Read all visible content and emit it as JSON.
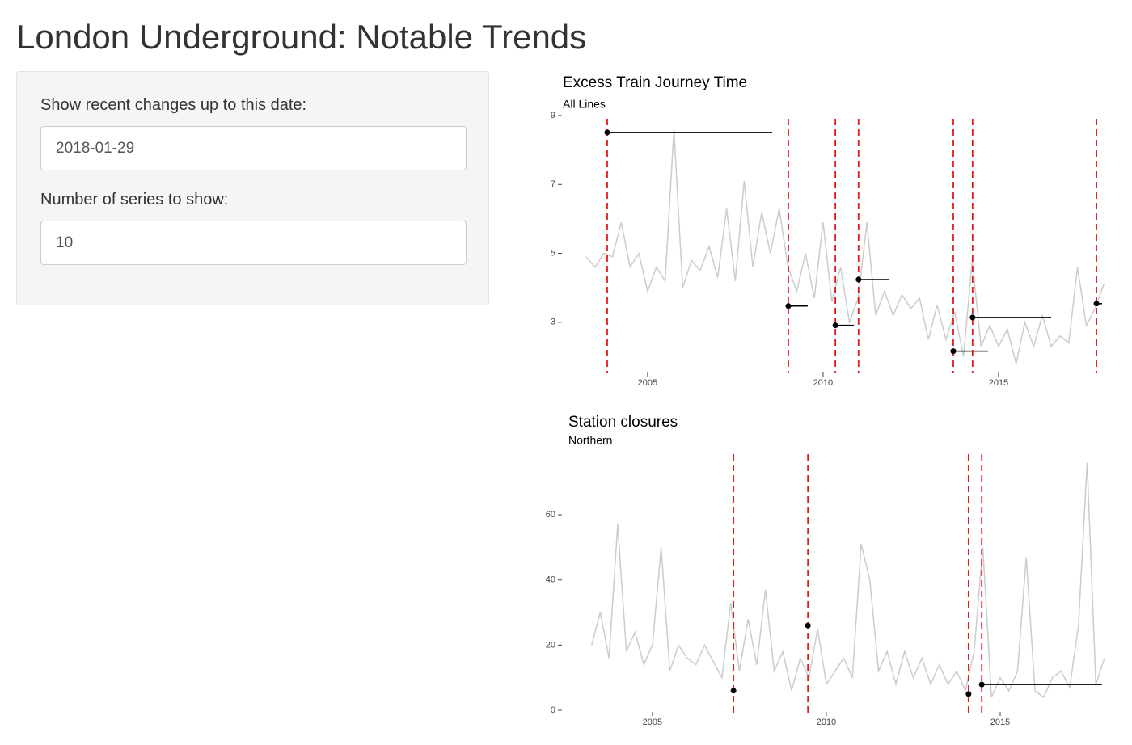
{
  "header": {
    "title": "London Underground: Notable Trends"
  },
  "sidebar": {
    "inputs": [
      {
        "label": "Show recent changes up to this date:",
        "value": "2018-01-29"
      },
      {
        "label": "Number of series to show:",
        "value": "10"
      }
    ]
  },
  "chart_data": [
    {
      "type": "line",
      "title": "Excess Train Journey Time",
      "subtitle": "All Lines",
      "x": [
        2003.25,
        2003.5,
        2003.75,
        2004.0,
        2004.25,
        2004.5,
        2004.75,
        2005.0,
        2005.25,
        2005.5,
        2005.75,
        2006.0,
        2006.25,
        2006.5,
        2006.75,
        2007.0,
        2007.25,
        2007.5,
        2007.75,
        2008.0,
        2008.25,
        2008.5,
        2008.75,
        2009.0,
        2009.25,
        2009.5,
        2009.75,
        2010.0,
        2010.25,
        2010.5,
        2010.75,
        2011.0,
        2011.25,
        2011.5,
        2011.75,
        2012.0,
        2012.25,
        2012.5,
        2012.75,
        2013.0,
        2013.25,
        2013.5,
        2013.75,
        2014.0,
        2014.25,
        2014.5,
        2014.75,
        2015.0,
        2015.25,
        2015.5,
        2015.75,
        2016.0,
        2016.25,
        2016.5,
        2016.75,
        2017.0,
        2017.25,
        2017.5,
        2017.75,
        2018.0
      ],
      "values": [
        4.9,
        4.6,
        5.0,
        4.9,
        5.9,
        4.6,
        5.0,
        3.9,
        4.6,
        4.2,
        8.6,
        4.0,
        4.8,
        4.5,
        5.2,
        4.3,
        6.3,
        4.2,
        7.1,
        4.6,
        6.2,
        5.0,
        6.3,
        4.6,
        3.9,
        5.0,
        3.7,
        5.9,
        3.6,
        4.6,
        3.0,
        3.7,
        5.9,
        3.2,
        3.9,
        3.2,
        3.8,
        3.4,
        3.7,
        2.5,
        3.5,
        2.5,
        3.3,
        2.0,
        4.8,
        2.3,
        2.9,
        2.3,
        2.8,
        1.8,
        3.0,
        2.3,
        3.2,
        2.3,
        2.6,
        2.4,
        4.6,
        2.9,
        3.4,
        4.1
      ],
      "color": "#cccccc",
      "segments": [
        {
          "start": 2003.85,
          "end": 2008.55,
          "value": 8.51
        },
        {
          "start": 2009.01,
          "end": 2009.56,
          "value": 3.47
        },
        {
          "start": 2010.35,
          "end": 2010.88,
          "value": 2.91
        },
        {
          "start": 2011.01,
          "end": 2011.87,
          "value": 4.24
        },
        {
          "start": 2013.71,
          "end": 2014.7,
          "value": 2.16
        },
        {
          "start": 2014.26,
          "end": 2016.5,
          "value": 3.14
        },
        {
          "start": 2017.79,
          "end": 2017.95,
          "value": 3.54
        }
      ],
      "xlim": [
        2002.79,
        2017.95
      ],
      "ylim": [
        1.8,
        9.0
      ],
      "xticks": [
        2005,
        2010,
        2015
      ],
      "yticks": [
        3,
        5,
        7,
        9
      ]
    },
    {
      "type": "line",
      "title": "Station closures",
      "subtitle": "Northern",
      "x": [
        2003.25,
        2003.5,
        2003.75,
        2004.0,
        2004.25,
        2004.5,
        2004.75,
        2005.0,
        2005.25,
        2005.5,
        2005.75,
        2006.0,
        2006.25,
        2006.5,
        2006.75,
        2007.0,
        2007.25,
        2007.5,
        2007.75,
        2008.0,
        2008.25,
        2008.5,
        2008.75,
        2009.0,
        2009.25,
        2009.5,
        2009.75,
        2010.0,
        2010.25,
        2010.5,
        2010.75,
        2011.0,
        2011.25,
        2011.5,
        2011.75,
        2012.0,
        2012.25,
        2012.5,
        2012.75,
        2013.0,
        2013.25,
        2013.5,
        2013.75,
        2014.0,
        2014.25,
        2014.5,
        2014.75,
        2015.0,
        2015.25,
        2015.5,
        2015.75,
        2016.0,
        2016.25,
        2016.5,
        2016.75,
        2017.0,
        2017.25,
        2017.5,
        2017.75,
        2018.0
      ],
      "values": [
        20,
        30,
        16,
        57,
        18,
        24,
        14,
        20,
        50,
        12,
        20,
        16,
        14,
        20,
        15,
        10,
        33,
        12,
        28,
        14,
        37,
        12,
        18,
        6,
        16,
        10,
        25,
        8,
        12,
        16,
        10,
        51,
        40,
        12,
        18,
        8,
        18,
        10,
        16,
        8,
        14,
        8,
        12,
        6,
        18,
        50,
        4,
        10,
        6,
        12,
        47,
        6,
        4,
        10,
        12,
        7,
        26,
        76,
        8,
        16
      ],
      "color": "#cccccc",
      "segments": [
        {
          "start": 2007.33,
          "end": 2007.33,
          "value": 6.0
        },
        {
          "start": 2009.47,
          "end": 2009.47,
          "value": 26.0
        },
        {
          "start": 2014.09,
          "end": 2014.09,
          "value": 5.0
        },
        {
          "start": 2014.47,
          "end": 2017.93,
          "value": 7.9
        }
      ],
      "xlim": [
        2002.63,
        2017.93
      ],
      "ylim": [
        -0.74,
        79.6
      ],
      "xticks": [
        2005,
        2010,
        2015
      ],
      "yticks": [
        0,
        20,
        40,
        60
      ]
    }
  ]
}
